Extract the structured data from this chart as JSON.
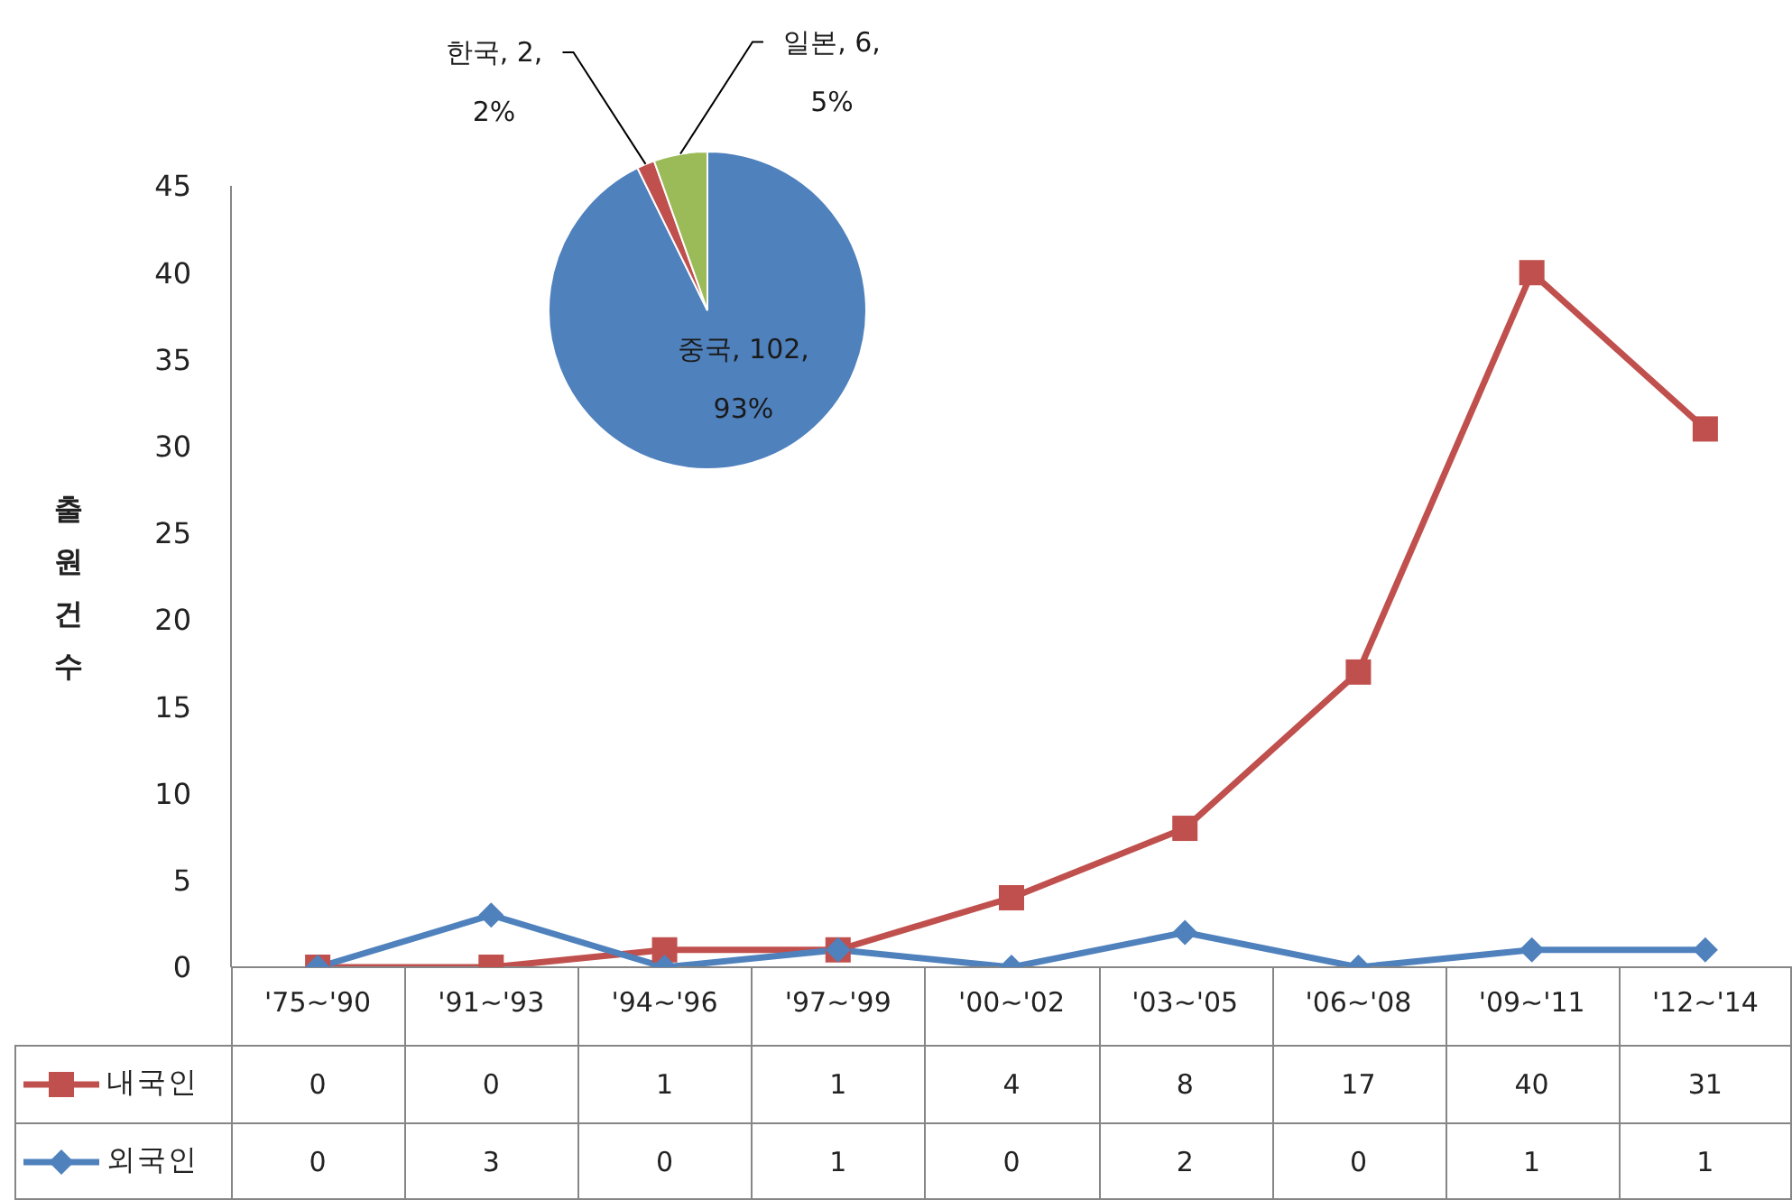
{
  "chart_data": [
    {
      "type": "line",
      "ylabel": "출원건수",
      "categories": [
        "'75~'90",
        "'91~'93",
        "'94~'96",
        "'97~'99",
        "'00~'02",
        "'03~'05",
        "'06~'08",
        "'09~'11",
        "'12~'14"
      ],
      "series": [
        {
          "name": "내국인",
          "color": "#c0504d",
          "marker": "square",
          "values": [
            0,
            0,
            1,
            1,
            4,
            8,
            17,
            40,
            31
          ]
        },
        {
          "name": "외국인",
          "color": "#4f81bd",
          "marker": "diamond",
          "values": [
            0,
            3,
            0,
            1,
            0,
            2,
            0,
            1,
            1
          ]
        }
      ],
      "ylim": [
        0,
        45
      ],
      "yticks": [
        0,
        5,
        10,
        15,
        20,
        25,
        30,
        35,
        40,
        45
      ],
      "legend": "bottom",
      "data_labels": true
    },
    {
      "type": "pie",
      "categories": [
        "중국",
        "한국",
        "일본"
      ],
      "values": [
        102,
        2,
        6
      ],
      "colors": [
        "#4f81bd",
        "#c0504d",
        "#9bbb59"
      ],
      "value_labels": [
        "102, 93%",
        "2, 2%",
        "6, 5%"
      ]
    }
  ]
}
